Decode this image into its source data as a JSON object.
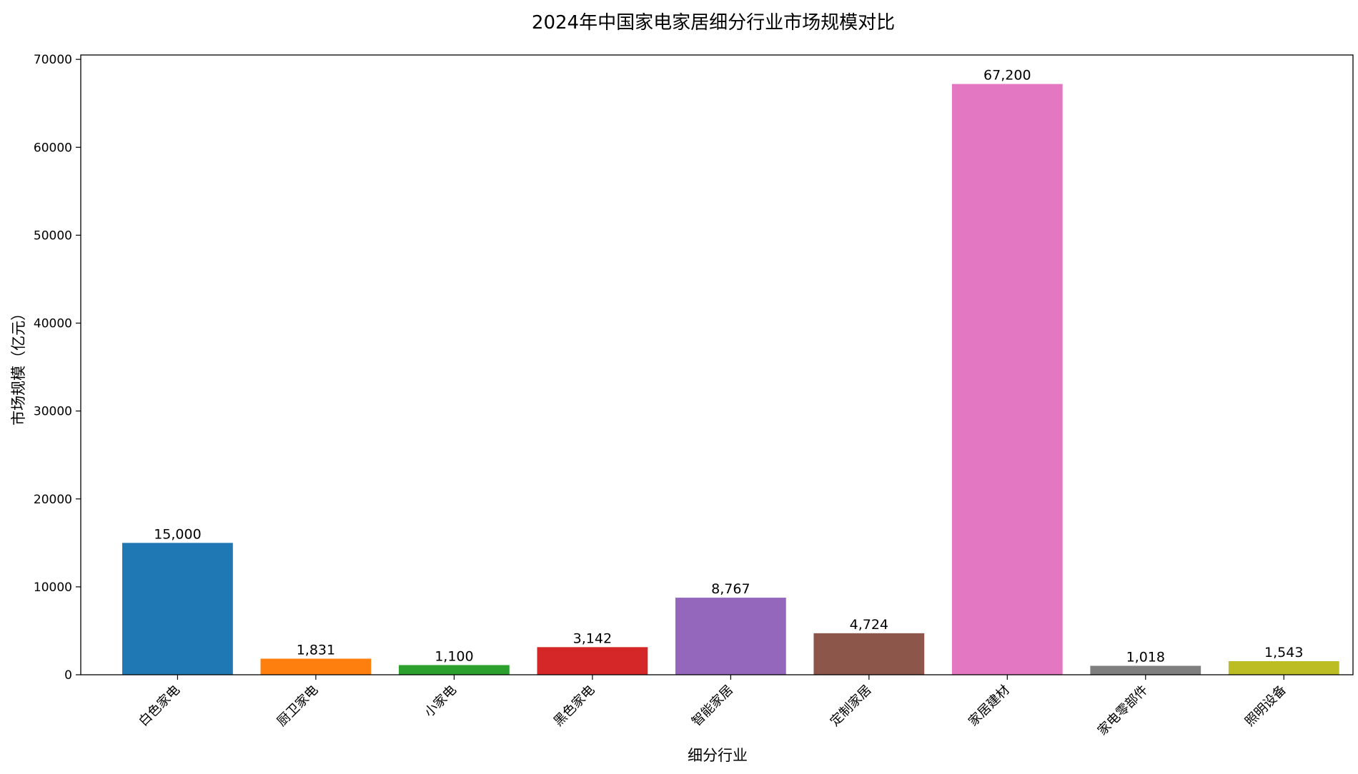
{
  "chart_data": {
    "type": "bar",
    "title": "2024年中国家电家居细分行业市场规模对比",
    "xlabel": "细分行业",
    "ylabel": "市场规模（亿元）",
    "ylim": [
      0,
      70500
    ],
    "yticks": [
      0,
      10000,
      20000,
      30000,
      40000,
      50000,
      60000,
      70000
    ],
    "grid": false,
    "legend": "none",
    "categories": [
      "白色家电",
      "厨卫家电",
      "小家电",
      "黑色家电",
      "智能家居",
      "定制家居",
      "家居建材",
      "家电零部件",
      "照明设备"
    ],
    "values": [
      15000,
      1831,
      1100,
      3142,
      8767,
      4724,
      67200,
      1018,
      1543
    ],
    "value_labels": [
      "15,000",
      "1,831",
      "1,100",
      "3,142",
      "8,767",
      "4,724",
      "67,200",
      "1,018",
      "1,543"
    ],
    "colors": [
      "#1f77b4",
      "#ff7f0e",
      "#2ca02c",
      "#d62728",
      "#9467bd",
      "#8c564b",
      "#e377c2",
      "#7f7f7f",
      "#bcbd22"
    ]
  }
}
